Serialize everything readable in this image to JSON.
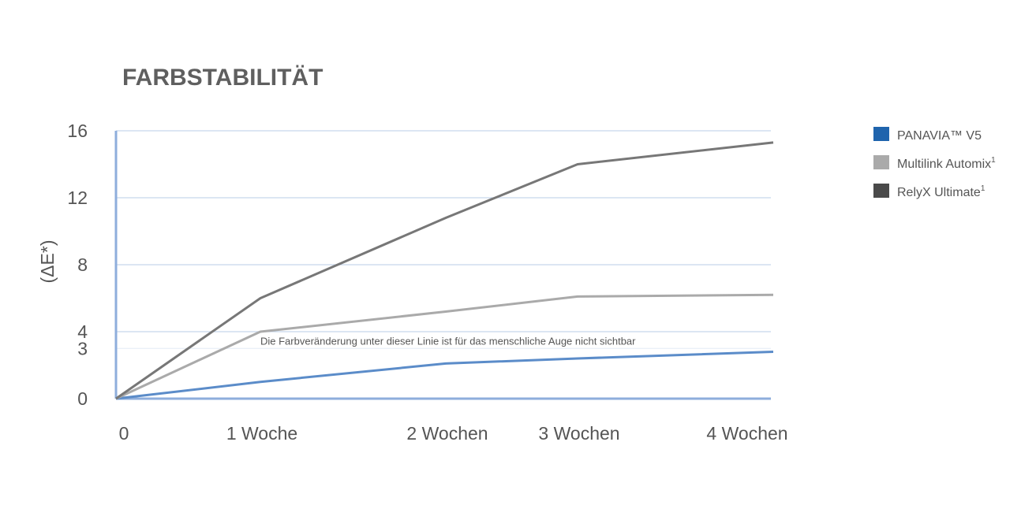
{
  "chart_data": {
    "type": "line",
    "title": "FARBSTABILITÄT",
    "xlabel": "",
    "ylabel": "(ΔE*)",
    "categories": [
      "0",
      "1 Woche",
      "2 Wochen",
      "3 Wochen",
      "4 Wochen"
    ],
    "y_ticks": [
      "0",
      "3",
      "4",
      "8",
      "12",
      "16"
    ],
    "ylim": [
      0,
      16
    ],
    "grid": true,
    "legend_position": "right",
    "threshold": {
      "value": 3,
      "label": "Die Farbveränderung unter dieser Linie ist für das menschliche Auge nicht sichtbar"
    },
    "series": [
      {
        "name": "PANAVIA™ V5",
        "color": "#1f64ad",
        "x": [
          0,
          1,
          2,
          3,
          4
        ],
        "values": [
          0,
          1.0,
          2.1,
          2.4,
          2.8
        ]
      },
      {
        "name": "Multilink Automix",
        "name_sup": "1",
        "color": "#aaaaaa",
        "x": [
          0,
          1,
          2,
          3,
          4
        ],
        "values": [
          0,
          4.0,
          5.2,
          6.1,
          6.2
        ]
      },
      {
        "name": "RelyX Ultimate",
        "name_sup": "1",
        "color": "#777777",
        "legend_color": "#4a4a4a",
        "x": [
          0,
          1,
          2,
          3,
          4
        ],
        "values": [
          0,
          6.0,
          10.8,
          14.0,
          15.3
        ]
      }
    ]
  }
}
